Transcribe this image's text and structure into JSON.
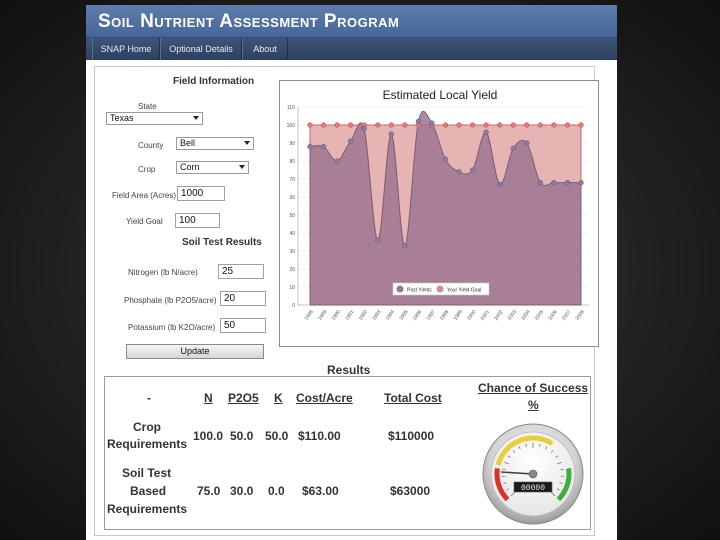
{
  "header": {
    "title": "Soil Nutrient Assessment Program"
  },
  "nav": {
    "items": [
      {
        "label": "SNAP Home"
      },
      {
        "label": "Optional Details"
      },
      {
        "label": "About"
      }
    ]
  },
  "field_info": {
    "heading": "Field Information",
    "state": {
      "label": "State",
      "value": "Texas"
    },
    "county": {
      "label": "County",
      "value": "Bell"
    },
    "crop": {
      "label": "Crop",
      "value": "Corn"
    },
    "field_area": {
      "label": "Field Area (Acres)",
      "value": "1000"
    },
    "yield_goal": {
      "label": "Yield Goal",
      "value": "100"
    }
  },
  "soil_test": {
    "heading": "Soil Test Results",
    "nitrogen": {
      "label": "Nitrogen (lb N/acre)",
      "value": "25"
    },
    "phosphate": {
      "label": "Phosphate (lb P2O5/acre)",
      "value": "20"
    },
    "potassium": {
      "label": "Potassium (lb K2O/acre)",
      "value": "50"
    },
    "update_label": "Update"
  },
  "chart_data": {
    "type": "area",
    "title": "Estimated Local Yield",
    "x": [
      "1988",
      "1989",
      "1990",
      "1991",
      "1992",
      "1993",
      "1994",
      "1995",
      "1996",
      "1997",
      "1998",
      "1999",
      "2000",
      "2001",
      "2002",
      "2003",
      "2004",
      "2005",
      "2006",
      "2007",
      "2008"
    ],
    "series": [
      {
        "name": "Past Yields",
        "color": "#8e6a84",
        "values": [
          88,
          88,
          80,
          91,
          98,
          36,
          95,
          33,
          102,
          101,
          81,
          74,
          75,
          96,
          67,
          87,
          90,
          68,
          68,
          68,
          68
        ]
      },
      {
        "name": "Your Yield Goal",
        "color": "#d98a8a",
        "values": [
          100,
          100,
          100,
          100,
          100,
          100,
          100,
          100,
          100,
          100,
          100,
          100,
          100,
          100,
          100,
          100,
          100,
          100,
          100,
          100,
          100
        ]
      }
    ],
    "ylim": [
      0,
      110
    ],
    "yticks": [
      0,
      10,
      20,
      30,
      40,
      50,
      60,
      70,
      80,
      90,
      100,
      110
    ],
    "legend": "bottom",
    "grid": true
  },
  "results": {
    "heading": "Results",
    "columns": {
      "dash": "-",
      "n": "N",
      "p2o5": "P2O5",
      "k": "K",
      "cost_acre": "Cost/Acre",
      "total_cost": "Total Cost"
    },
    "crop_req": {
      "label_line1": "Crop",
      "label_line2": "Requirements",
      "n": "100.0",
      "p2o5": "50.0",
      "k": "50.0",
      "cost_acre": "$110.00",
      "total_cost": "$110000"
    },
    "soil_req": {
      "label_line1": "Soil Test",
      "label_line2": "Based",
      "label_line3": "Requirements",
      "n": "75.0",
      "p2o5": "30.0",
      "k": "0.0",
      "cost_acre": "$63.00",
      "total_cost": "$63000"
    },
    "chance": {
      "label_line1": "Chance of Success",
      "label_line2": "%",
      "odometer": "00000",
      "needle_fraction": 0.18
    }
  },
  "colors": {
    "banner": "#5577a6",
    "nav": "#35496a",
    "yield_goal_fill": "#e3a7a7",
    "past_yield_fill": "#9c7590"
  }
}
